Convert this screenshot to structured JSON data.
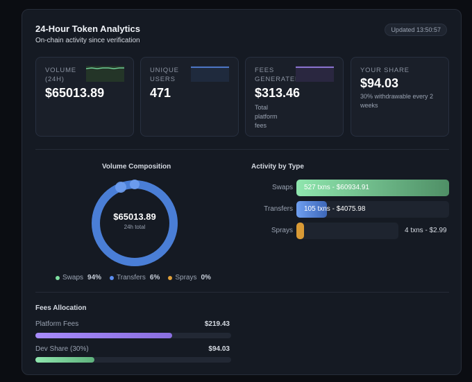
{
  "header": {
    "title": "24-Hour Token Analytics",
    "subtitle": "On-chain activity since verification",
    "updated": "Updated 13:50:57"
  },
  "cards": [
    {
      "label": "VOLUME (24H)",
      "value": "$65013.89",
      "note": "",
      "spark_color": "#6fcf97"
    },
    {
      "label": "UNIQUE USERS",
      "value": "471",
      "note": "",
      "spark_color": "#5b8def"
    },
    {
      "label": "FEES GENERATED",
      "value": "$313.46",
      "note": "Total platform fees",
      "spark_color": "#a78bfa"
    },
    {
      "label": "YOUR SHARE",
      "value": "$94.03",
      "note": "30% withdrawable every 2 weeks",
      "spark_color": ""
    }
  ],
  "composition": {
    "title": "Volume Composition",
    "center_value": "$65013.89",
    "center_caption": "24h total",
    "legend": [
      {
        "name": "Swaps",
        "pct": "94%",
        "color": "#7ee0a0"
      },
      {
        "name": "Transfers",
        "pct": "6%",
        "color": "#5b8def"
      },
      {
        "name": "Sprays",
        "pct": "0%",
        "color": "#e0a03a"
      }
    ]
  },
  "activity": {
    "title": "Activity by Type",
    "rows": [
      {
        "label": "Swaps",
        "text": "527 txns - $60934.91",
        "fraction": 1.0
      },
      {
        "label": "Transfers",
        "text": "105 txns - $4075.98",
        "fraction": 0.2
      },
      {
        "label": "Sprays",
        "text": "4 txns - $2.99",
        "fraction": 0.008
      }
    ]
  },
  "fees": {
    "title": "Fees Allocation",
    "rows": [
      {
        "label": "Platform Fees",
        "value": "$219.43",
        "fraction": 0.7
      },
      {
        "label": "Dev Share (30%)",
        "value": "$94.03",
        "fraction": 0.3
      }
    ]
  },
  "colors": {
    "swaps": "#7ee0a0",
    "transfers": "#5b8def",
    "sprays": "#e0a03a",
    "platform": "#a78bfa"
  }
}
